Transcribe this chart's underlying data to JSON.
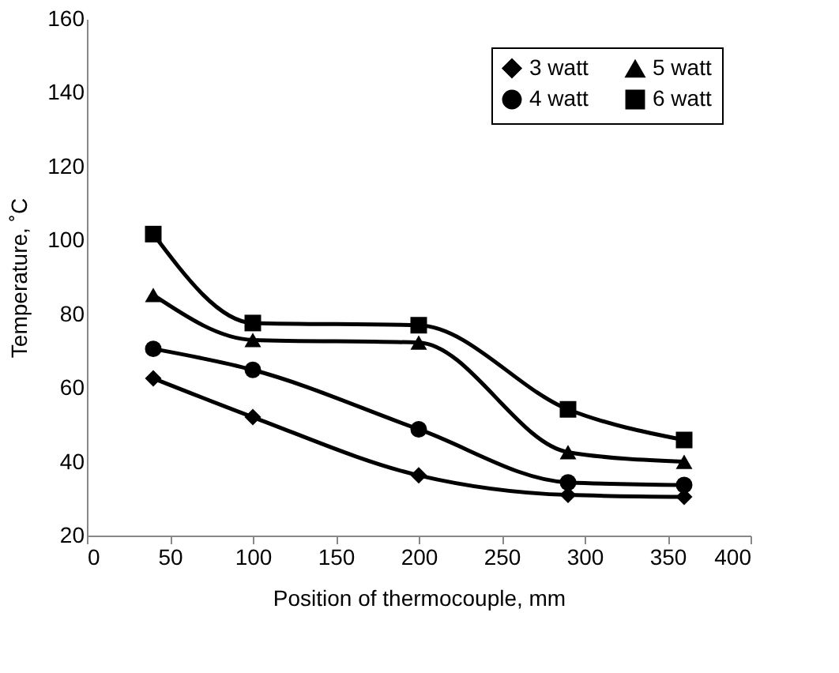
{
  "chart_data": {
    "type": "line",
    "xlabel": "Position of thermocouple, mm",
    "ylabel": "Temperature, ˚C",
    "x": [
      40,
      100,
      200,
      290,
      360
    ],
    "series": [
      {
        "name": "3 watt",
        "color": "#000000",
        "marker": "diamond",
        "values": [
          62.6,
          52.1,
          36.3,
          31.0,
          30.5
        ]
      },
      {
        "name": "4 watt",
        "color": "#000000",
        "marker": "circle",
        "values": [
          70.6,
          64.9,
          48.8,
          34.4,
          33.7
        ]
      },
      {
        "name": "5 watt",
        "color": "#000000",
        "marker": "triangle",
        "values": [
          85.2,
          73.0,
          72.3,
          42.6,
          40.0
        ]
      },
      {
        "name": "6 watt",
        "color": "#000000",
        "marker": "square",
        "values": [
          101.7,
          77.6,
          77.0,
          54.2,
          45.9
        ]
      }
    ],
    "xlim": [
      0,
      400
    ],
    "xticks": [
      0,
      50,
      100,
      150,
      200,
      250,
      300,
      350,
      400
    ],
    "ylim": [
      20,
      160
    ],
    "yticks": [
      20,
      40,
      60,
      80,
      100,
      120,
      140,
      160
    ],
    "grid": false,
    "legend": "top right",
    "line_style": "solid"
  }
}
